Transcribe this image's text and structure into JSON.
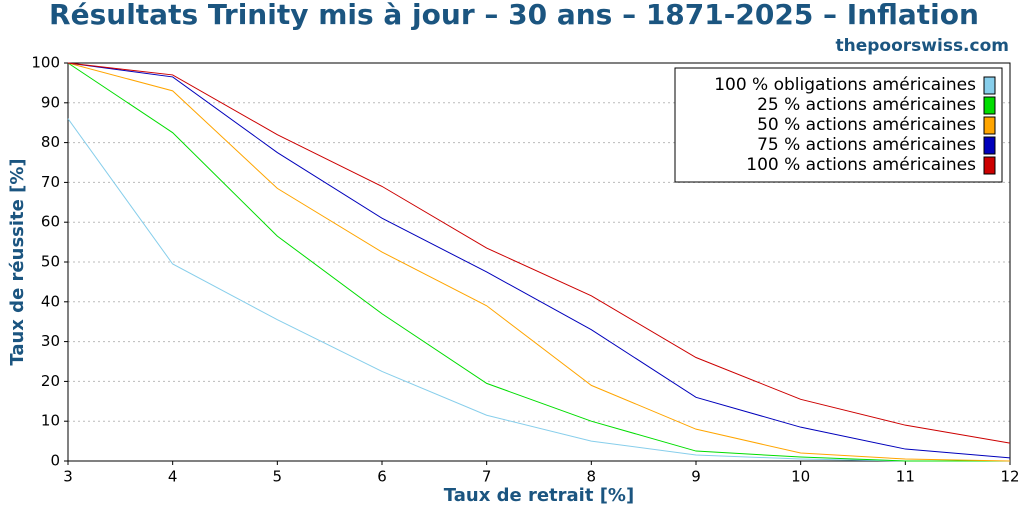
{
  "chart_data": {
    "type": "line",
    "title": "Résultats Trinity mis à jour – 30 ans – 1871-2025 – Inflation",
    "subtitle": "thepoorswiss.com",
    "x_label": "Taux de retrait [%]",
    "y_label": "Taux de réussite [%]",
    "x": [
      3,
      4,
      5,
      6,
      7,
      8,
      9,
      10,
      11,
      12
    ],
    "series": [
      {
        "name": "100 % obligations américaines",
        "color": "#87ceeb",
        "values": [
          86,
          49.5,
          35.5,
          22.5,
          11.5,
          5,
          1.5,
          0.5,
          0,
          0
        ]
      },
      {
        "name": "25 % actions américaines",
        "color": "#00dd00",
        "values": [
          100,
          82.5,
          56.5,
          37,
          19.5,
          10,
          2.5,
          1,
          0,
          0
        ]
      },
      {
        "name": "50 % actions américaines",
        "color": "#ffa500",
        "values": [
          100,
          93,
          68.5,
          52.5,
          39,
          19,
          8,
          2,
          0.5,
          0
        ]
      },
      {
        "name": "75 % actions américaines",
        "color": "#0000bb",
        "values": [
          100,
          96.5,
          77.5,
          61,
          47.5,
          33,
          16,
          8.5,
          3,
          0.8
        ]
      },
      {
        "name": "100 % actions américaines",
        "color": "#cc0000",
        "values": [
          100,
          97,
          82,
          69,
          53.5,
          41.5,
          26,
          15.5,
          9,
          4.5
        ]
      }
    ],
    "xlim": [
      3,
      12
    ],
    "ylim": [
      0,
      100
    ],
    "xticks": [
      3,
      4,
      5,
      6,
      7,
      8,
      9,
      10,
      11,
      12
    ],
    "yticks": [
      0,
      10,
      20,
      30,
      40,
      50,
      60,
      70,
      80,
      90,
      100
    ],
    "grid": true,
    "legend": "upper right"
  }
}
